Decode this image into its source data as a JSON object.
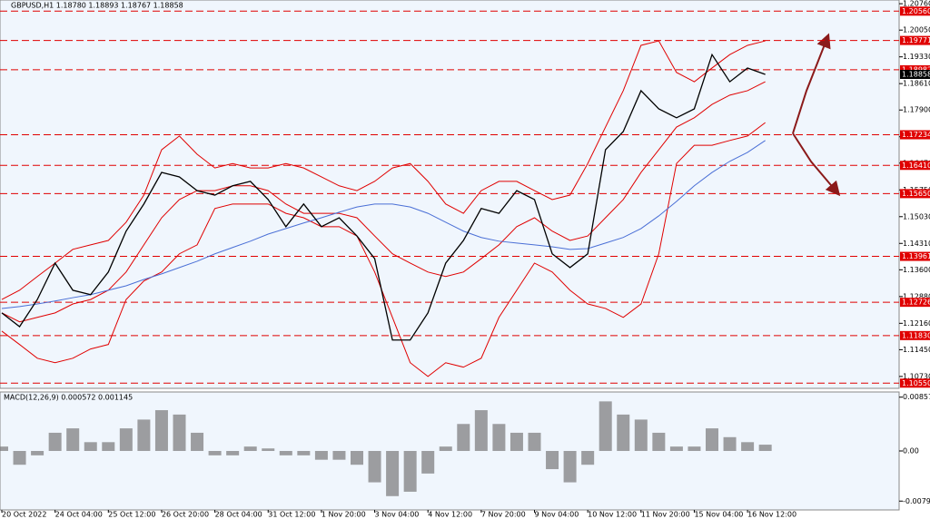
{
  "chart_data": [
    {
      "type": "line",
      "title": "GBPUSD,H1 1.18780 1.18893 1.18767 1.18858",
      "categories": [
        "20 Oct 2022",
        null,
        null,
        "24 Oct 04:00",
        null,
        null,
        "25 Oct 12:00",
        null,
        null,
        "26 Oct 20:00",
        null,
        null,
        "28 Oct 04:00",
        null,
        null,
        "31 Oct 12:00",
        null,
        null,
        "1 Nov 20:00",
        null,
        null,
        "3 Nov 04:00",
        null,
        null,
        "4 Nov 12:00",
        null,
        null,
        "7 Nov 20:00",
        null,
        null,
        "9 Nov 04:00",
        null,
        null,
        "10 Nov 12:00",
        null,
        null,
        "11 Nov 20:00",
        null,
        null,
        "15 Nov 04:00",
        null,
        null,
        "16 Nov 12:00",
        null
      ],
      "series": [
        {
          "color": "#e00000",
          "values": [
            1.128,
            1.1305,
            1.1342,
            1.1378,
            1.1415,
            1.1427,
            1.1439,
            1.1488,
            1.1561,
            1.1683,
            1.172,
            1.1671,
            1.1634,
            1.1646,
            1.1634,
            1.1634,
            1.1646,
            1.1634,
            1.161,
            1.1586,
            1.1573,
            1.1598,
            1.1634,
            1.1646,
            1.1598,
            1.1537,
            1.1512,
            1.1573,
            1.1598,
            1.1598,
            1.1573,
            1.1549,
            1.1561,
            1.1646,
            1.1744,
            1.1842,
            1.1964,
            1.1976,
            1.1891,
            1.1866,
            1.1903,
            1.1939,
            1.1964,
            1.1976
          ]
        },
        {
          "color": "#e00000",
          "values": [
            1.1244,
            1.122,
            1.1232,
            1.1244,
            1.1268,
            1.128,
            1.1305,
            1.1354,
            1.1427,
            1.15,
            1.1549,
            1.1573,
            1.1573,
            1.1586,
            1.1586,
            1.1573,
            1.1537,
            1.1512,
            1.1512,
            1.1512,
            1.15,
            1.1451,
            1.1403,
            1.1378,
            1.1354,
            1.1342,
            1.1354,
            1.139,
            1.1427,
            1.1476,
            1.15,
            1.1464,
            1.1439,
            1.1451,
            1.15,
            1.1549,
            1.1622,
            1.1683,
            1.1744,
            1.1769,
            1.1805,
            1.183,
            1.1842,
            1.1866
          ]
        },
        {
          "color": "#e00000",
          "values": [
            1.1195,
            1.1159,
            1.1122,
            1.111,
            1.1122,
            1.1147,
            1.1159,
            1.128,
            1.133,
            1.1354,
            1.1403,
            1.1427,
            1.1525,
            1.1537,
            1.1537,
            1.1537,
            1.1512,
            1.15,
            1.1476,
            1.1476,
            1.1451,
            1.1354,
            1.1232,
            1.111,
            1.1073,
            1.111,
            1.1098,
            1.1122,
            1.1232,
            1.1305,
            1.1378,
            1.1354,
            1.1305,
            1.1268,
            1.1256,
            1.1232,
            1.1268,
            1.1403,
            1.1646,
            1.1695,
            1.1695,
            1.1708,
            1.172,
            1.1756
          ]
        },
        {
          "color": "#4a6fd6",
          "values": [
            1.1256,
            1.1261,
            1.1268,
            1.1276,
            1.1285,
            1.1293,
            1.1305,
            1.1317,
            1.1334,
            1.1349,
            1.1366,
            1.1383,
            1.1403,
            1.142,
            1.1437,
            1.1456,
            1.1471,
            1.1486,
            1.15,
            1.1515,
            1.1529,
            1.1537,
            1.1537,
            1.1529,
            1.1512,
            1.1488,
            1.1464,
            1.1447,
            1.1437,
            1.1432,
            1.1427,
            1.1422,
            1.1415,
            1.1417,
            1.1432,
            1.1447,
            1.1471,
            1.1505,
            1.1544,
            1.1586,
            1.1622,
            1.1652,
            1.1676,
            1.1708
          ]
        },
        {
          "color": "#000000",
          "values": [
            1.1244,
            1.1207,
            1.128,
            1.1378,
            1.1305,
            1.1293,
            1.1354,
            1.1464,
            1.1537,
            1.1622,
            1.161,
            1.1573,
            1.1561,
            1.1586,
            1.1598,
            1.1549,
            1.1476,
            1.1537,
            1.1476,
            1.15,
            1.1451,
            1.139,
            1.1171,
            1.1171,
            1.1244,
            1.1378,
            1.1439,
            1.1525,
            1.1512,
            1.1573,
            1.1549,
            1.1403,
            1.1366,
            1.1403,
            1.1683,
            1.1732,
            1.1842,
            1.1793,
            1.1769,
            1.1793,
            1.1939,
            1.1866,
            1.1903,
            1.18858
          ]
        }
      ],
      "ylim": [
        1.1041,
        1.2086
      ],
      "yticks": [
        {
          "value": 1.2076,
          "label": "1.20760"
        },
        {
          "value": 1.2005,
          "label": "1.20050"
        },
        {
          "value": 1.1933,
          "label": "1.19330"
        },
        {
          "value": 1.1861,
          "label": "1.18610"
        },
        {
          "value": 1.179,
          "label": "1.17900"
        },
        {
          "value": 1.1718,
          "label": "1.17180"
        },
        {
          "value": 1.1647,
          "label": "1.16470"
        },
        {
          "value": 1.1575,
          "label": "1.15750"
        },
        {
          "value": 1.1503,
          "label": "1.15030"
        },
        {
          "value": 1.1431,
          "label": "1.14310"
        },
        {
          "value": 1.136,
          "label": "1.13600"
        },
        {
          "value": 1.1288,
          "label": "1.12880"
        },
        {
          "value": 1.1216,
          "label": "1.12160"
        },
        {
          "value": 1.1145,
          "label": "1.11450"
        },
        {
          "value": 1.1073,
          "label": "1.10730"
        }
      ],
      "levels": [
        {
          "value": 1.2056,
          "label": "1.20560"
        },
        {
          "value": 1.19771,
          "label": "1.19771"
        },
        {
          "value": 1.18982,
          "label": "1.18982"
        },
        {
          "value": 1.17234,
          "label": "1.17234"
        },
        {
          "value": 1.1641,
          "label": "1.16410"
        },
        {
          "value": 1.1565,
          "label": "1.15650"
        },
        {
          "value": 1.13961,
          "label": "1.13961"
        },
        {
          "value": 1.12726,
          "label": "1.12726"
        },
        {
          "value": 1.1183,
          "label": "1.11830"
        },
        {
          "value": 1.1055,
          "label": "1.10550"
        }
      ],
      "levels_color": "#e00000",
      "last": {
        "value": 1.18858,
        "label": "1.18858"
      }
    },
    {
      "type": "bar",
      "title": "MACD(12,26,9) 0.000572 0.001145",
      "color": "#777777",
      "values": [
        0.0007,
        -0.0022,
        -0.0007,
        0.0029,
        0.0036,
        0.0014,
        0.0014,
        0.0036,
        0.005,
        0.0065,
        0.0058,
        0.0029,
        -0.0007,
        -0.0007,
        0.0007,
        0.0004,
        -0.0007,
        -0.0007,
        -0.0014,
        -0.0014,
        -0.0022,
        -0.005,
        -0.0072,
        -0.0065,
        -0.0036,
        0.0007,
        0.0043,
        0.0065,
        0.0043,
        0.0029,
        0.0029,
        -0.0029,
        -0.005,
        -0.0022,
        0.0079,
        0.0058,
        0.005,
        0.0029,
        0.0007,
        0.0007,
        0.0036,
        0.0022,
        0.0014,
        0.001
      ],
      "ylim": [
        -0.0094,
        0.0094
      ],
      "yticks": [
        0.008572,
        {
          "value": 0,
          "label": "0.00"
        },
        -0.007991
      ]
    }
  ]
}
